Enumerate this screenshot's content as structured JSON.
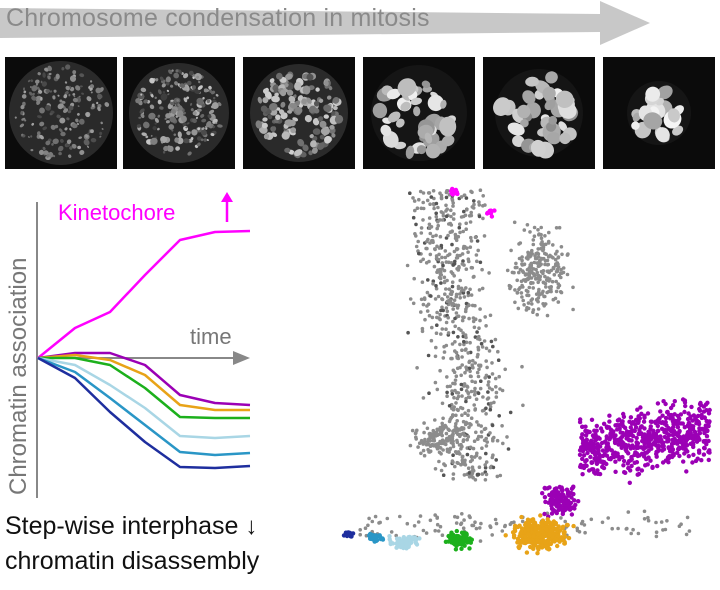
{
  "banner": {
    "title": "Chromosome condensation in mitosis"
  },
  "micrographs": [
    {
      "id": "stage-1",
      "style": "diffuse"
    },
    {
      "id": "stage-2",
      "style": "speckled"
    },
    {
      "id": "stage-3",
      "style": "granular"
    },
    {
      "id": "stage-4",
      "style": "condensed"
    },
    {
      "id": "stage-5",
      "style": "condensed"
    },
    {
      "id": "stage-6",
      "style": "compact"
    }
  ],
  "association_plot": {
    "ylabel": "Chromatin association",
    "time_label": "time",
    "kinetochore_label": "Kinetochore",
    "kinetochore_color": "#ff00ff",
    "series_colors": [
      "#ff00ff",
      "#9b00b5",
      "#e8a317",
      "#1cb01c",
      "#a9d6e5",
      "#2a96c6",
      "#1e2e9e"
    ]
  },
  "caption": {
    "line1": "Step-wise interphase",
    "line2": "chromatin disassembly"
  },
  "chart_data": {
    "type": "scatter",
    "description_colors": {
      "background_points": "#8c8c8c",
      "clusters": [
        "#ff00ff",
        "#9b00b5",
        "#e8a317",
        "#1cb01c",
        "#a9d6e5",
        "#2a96c6",
        "#1e2e9e"
      ]
    }
  }
}
